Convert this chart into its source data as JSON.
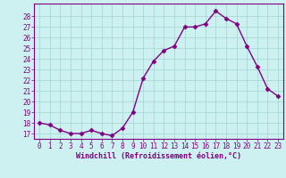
{
  "x": [
    0,
    1,
    2,
    3,
    4,
    5,
    6,
    7,
    8,
    9,
    10,
    11,
    12,
    13,
    14,
    15,
    16,
    17,
    18,
    19,
    20,
    21,
    22,
    23
  ],
  "y": [
    18.0,
    17.8,
    17.3,
    17.0,
    17.0,
    17.3,
    17.0,
    16.8,
    17.5,
    19.0,
    22.2,
    23.8,
    24.8,
    25.2,
    27.0,
    27.0,
    27.3,
    28.5,
    27.8,
    27.3,
    25.2,
    23.3,
    21.2,
    20.5
  ],
  "color": "#800080",
  "bg_color": "#cdf0f0",
  "grid_color": "#a8d8d8",
  "xlabel": "Windchill (Refroidissement éolien,°C)",
  "ylim": [
    16.5,
    29.2
  ],
  "yticks": [
    17,
    18,
    19,
    20,
    21,
    22,
    23,
    24,
    25,
    26,
    27,
    28
  ],
  "xlim": [
    -0.5,
    23.5
  ],
  "xticks": [
    0,
    1,
    2,
    3,
    4,
    5,
    6,
    7,
    8,
    9,
    10,
    11,
    12,
    13,
    14,
    15,
    16,
    17,
    18,
    19,
    20,
    21,
    22,
    23
  ],
  "marker": "D",
  "markersize": 2.5,
  "linewidth": 1.0,
  "xlabel_fontsize": 6.0,
  "tick_fontsize": 5.5,
  "label_color": "#800080"
}
